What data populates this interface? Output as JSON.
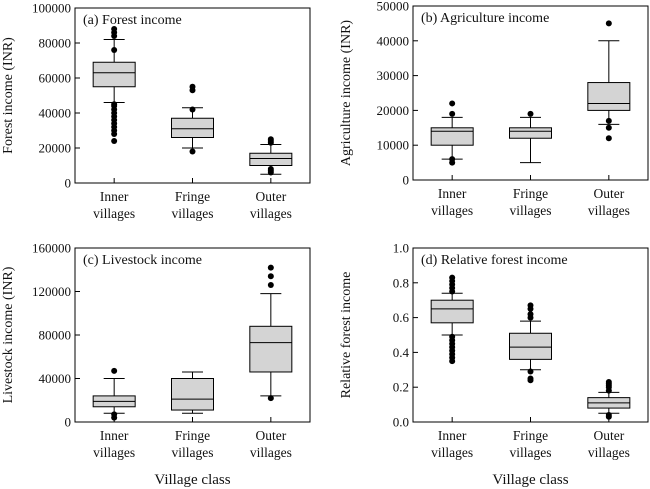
{
  "chart_data": [
    {
      "type": "boxplot",
      "panel_label": "(a) Forest income",
      "ylabel": "Forest income (INR)",
      "xlabel": "",
      "categories": [
        "Inner villages",
        "Fringe villages",
        "Outer villages"
      ],
      "ylim": [
        0,
        100000
      ],
      "yticks": [
        "0",
        "20000",
        "40000",
        "60000",
        "80000",
        "100000"
      ],
      "boxes": [
        {
          "whisker_low": 46000,
          "q1": 55000,
          "median": 63000,
          "q3": 69000,
          "whisker_high": 82000,
          "outliers": [
            24000,
            28000,
            30000,
            32000,
            34000,
            36000,
            38000,
            40000,
            42000,
            44000,
            45000,
            76000,
            84000,
            86000,
            88000
          ]
        },
        {
          "whisker_low": 20000,
          "q1": 26000,
          "median": 31000,
          "q3": 37000,
          "whisker_high": 43000,
          "outliers": [
            18000,
            42000,
            53000,
            55000
          ]
        },
        {
          "whisker_low": 5000,
          "q1": 10000,
          "median": 14000,
          "q3": 17000,
          "whisker_high": 22000,
          "outliers": [
            6000,
            7000,
            8000,
            23000,
            24000,
            25000
          ]
        }
      ]
    },
    {
      "type": "boxplot",
      "panel_label": "(b) Agriculture income",
      "ylabel": "Agriculture income (INR)",
      "xlabel": "",
      "categories": [
        "Inner villages",
        "Fringe villages",
        "Outer villages"
      ],
      "ylim": [
        0,
        50000
      ],
      "yticks": [
        "0",
        "10000",
        "20000",
        "30000",
        "40000",
        "50000"
      ],
      "boxes": [
        {
          "whisker_low": 6000,
          "q1": 10000,
          "median": 14000,
          "q3": 15000,
          "whisker_high": 18000,
          "outliers": [
            5000,
            6000,
            19000,
            22000
          ]
        },
        {
          "whisker_low": 5000,
          "q1": 12000,
          "median": 14000,
          "q3": 15000,
          "whisker_high": 18000,
          "outliers": [
            19000
          ]
        },
        {
          "whisker_low": 16000,
          "q1": 20000,
          "median": 22000,
          "q3": 28000,
          "whisker_high": 40000,
          "outliers": [
            12000,
            15000,
            17000,
            45000
          ]
        }
      ]
    },
    {
      "type": "boxplot",
      "panel_label": "(c) Livestock income",
      "ylabel": "Livestock income (INR)",
      "xlabel": "Village class",
      "categories": [
        "Inner villages",
        "Fringe villages",
        "Outer villages"
      ],
      "ylim": [
        0,
        160000
      ],
      "yticks": [
        "0",
        "40000",
        "80000",
        "120000",
        "160000"
      ],
      "boxes": [
        {
          "whisker_low": 8000,
          "q1": 14000,
          "median": 19000,
          "q3": 24000,
          "whisker_high": 40000,
          "outliers": [
            4000,
            7000,
            47000
          ]
        },
        {
          "whisker_low": 8000,
          "q1": 11000,
          "median": 21000,
          "q3": 40000,
          "whisker_high": 46000,
          "outliers": []
        },
        {
          "whisker_low": 24000,
          "q1": 46000,
          "median": 73000,
          "q3": 88000,
          "whisker_high": 118000,
          "outliers": [
            22000,
            126000,
            134000,
            142000
          ]
        }
      ]
    },
    {
      "type": "boxplot",
      "panel_label": "(d) Relative forest income",
      "ylabel": "Relative forest income",
      "xlabel": "Village class",
      "categories": [
        "Inner villages",
        "Fringe villages",
        "Outer villages"
      ],
      "ylim": [
        0,
        1.0
      ],
      "yticks": [
        "0.0",
        "0.2",
        "0.4",
        "0.6",
        "0.8",
        "1.0"
      ],
      "boxes": [
        {
          "whisker_low": 0.5,
          "q1": 0.57,
          "median": 0.65,
          "q3": 0.7,
          "whisker_high": 0.74,
          "outliers": [
            0.35,
            0.37,
            0.39,
            0.41,
            0.43,
            0.45,
            0.47,
            0.49,
            0.75,
            0.77,
            0.79,
            0.81,
            0.83
          ]
        },
        {
          "whisker_low": 0.3,
          "q1": 0.36,
          "median": 0.43,
          "q3": 0.51,
          "whisker_high": 0.58,
          "outliers": [
            0.24,
            0.25,
            0.29,
            0.6,
            0.62,
            0.65,
            0.67
          ]
        },
        {
          "whisker_low": 0.05,
          "q1": 0.08,
          "median": 0.11,
          "q3": 0.14,
          "whisker_high": 0.17,
          "outliers": [
            0.03,
            0.04,
            0.18,
            0.2,
            0.21,
            0.22,
            0.23
          ]
        }
      ]
    }
  ]
}
